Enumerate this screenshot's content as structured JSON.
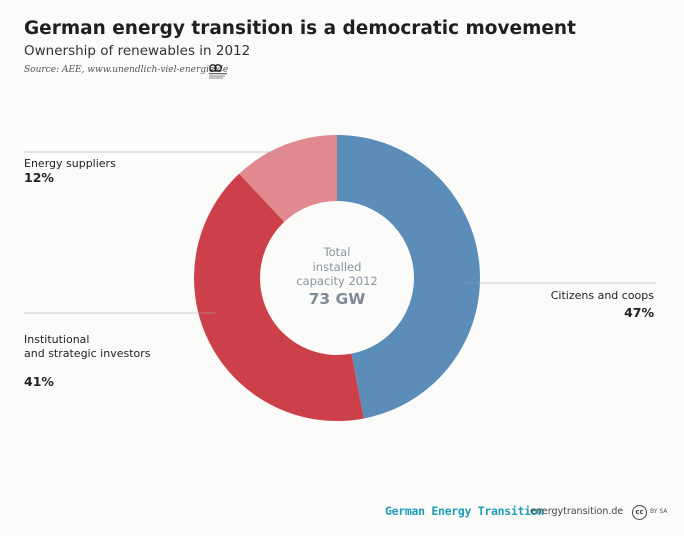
{
  "header": {
    "title": "German energy transition is a democratic movement",
    "subtitle": "Ownership of renewables in 2012",
    "source": "Source: AEE, www.unendlich-viel-energie.de"
  },
  "chart_data": {
    "type": "pie",
    "variant": "donut",
    "title": "German energy transition is a democratic movement",
    "subtitle": "Ownership of renewables in 2012",
    "slices": [
      {
        "label": "Citizens and coops",
        "value": 47,
        "display": "47%",
        "color": "#5b8db8"
      },
      {
        "label": "Institutional\nand strategic investors",
        "value": 41,
        "display": "41%",
        "color": "#cc4149"
      },
      {
        "label": "Energy suppliers",
        "value": 12,
        "display": "12%",
        "color": "#e08a8f"
      }
    ],
    "center": {
      "label_lines": [
        "Total",
        "installed",
        "capacity 2012"
      ],
      "value": "73 GW"
    },
    "legend": "none"
  },
  "footer": {
    "brand": "German Energy Transition",
    "url": "energytransition.de",
    "license_badge": "cc",
    "license_text": "BY SA"
  }
}
